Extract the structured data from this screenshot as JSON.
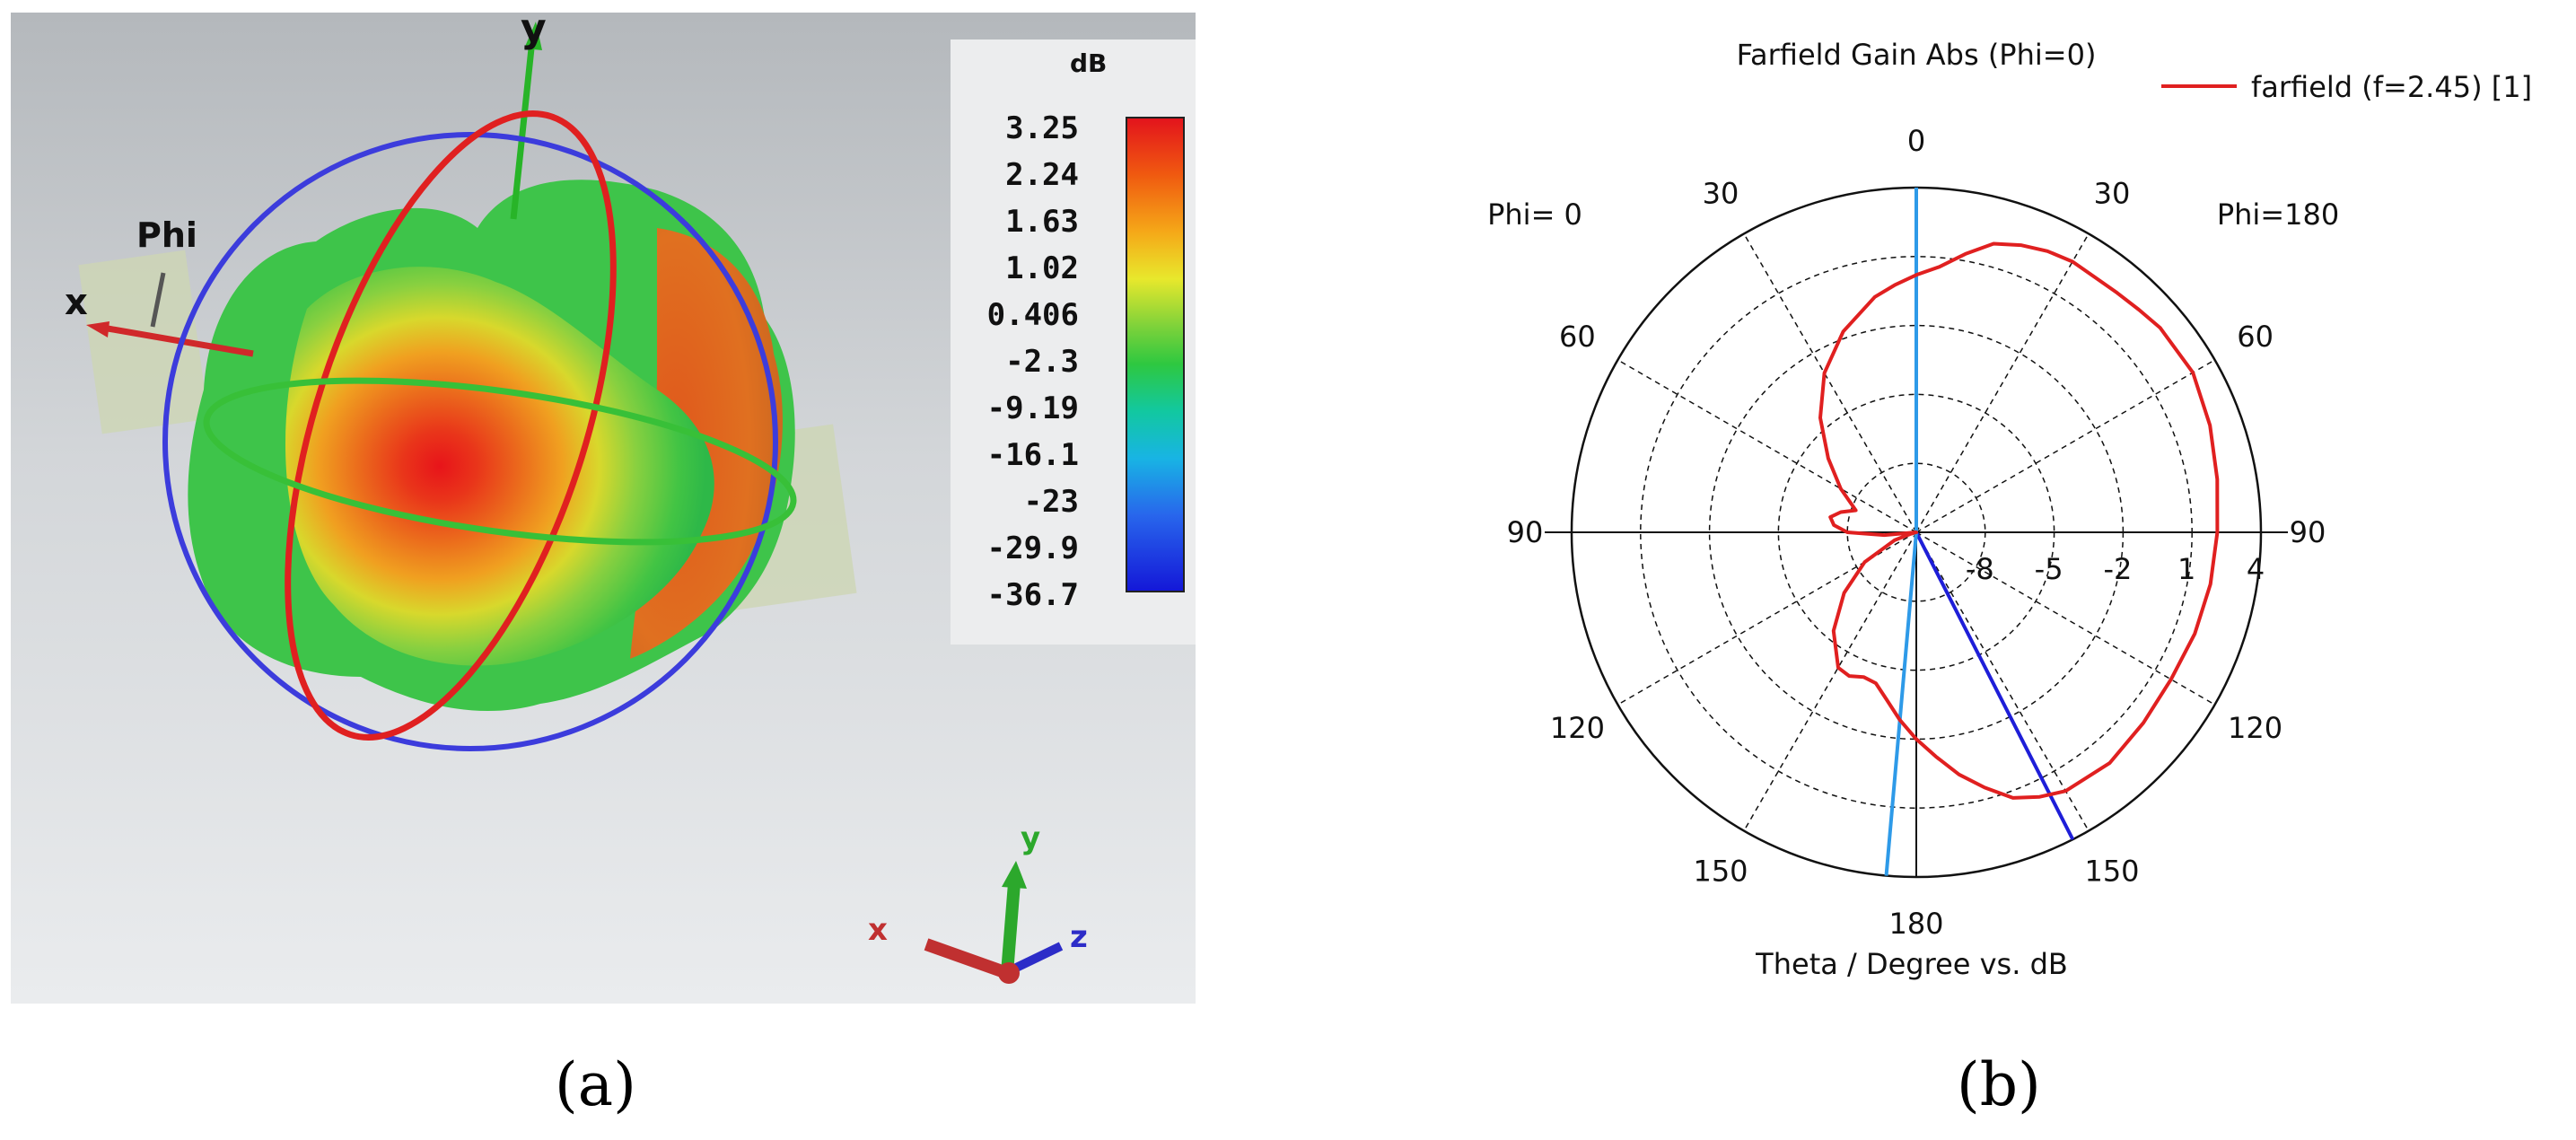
{
  "panel_a": {
    "caption": "(a)",
    "axis_labels": {
      "y": "y",
      "x": "x",
      "phi": "Phi"
    },
    "triad_labels": {
      "x": "x",
      "y": "y",
      "z": "z"
    },
    "colorbar": {
      "unit": "dB",
      "ticks": [
        "3.25",
        "2.24",
        "1.63",
        "1.02",
        "0.406",
        "-2.3",
        "-9.19",
        "-16.1",
        "-23",
        "-29.9",
        "-36.7"
      ],
      "colors": {
        "max": "#e3141c",
        "mid": "#2ec840",
        "min": "#1418d8"
      }
    }
  },
  "panel_b": {
    "caption": "(b)",
    "chart_data": {
      "type": "polar",
      "title": "Farfield Gain Abs (Phi=0)",
      "xlabel": "Theta / Degree vs. dB",
      "left_label": "Phi= 0",
      "right_label": "Phi=180",
      "angle_ticks": [
        "0",
        "30",
        "60",
        "90",
        "120",
        "150",
        "180",
        "150",
        "120",
        "90",
        "60",
        "30"
      ],
      "radial_ticks": [
        "-8",
        "-5",
        "-2",
        "1",
        "4"
      ],
      "radial_range": [
        -11,
        4
      ],
      "legend": {
        "entries": [
          "farfield (f=2.45) [1]"
        ],
        "placement": "top-right"
      },
      "grid": true,
      "series": [
        {
          "name": "farfield (f=2.45) [1]",
          "color": "#e02020",
          "angle_deg": [
            0,
            5,
            10,
            15,
            20,
            25,
            30,
            35,
            40,
            45,
            50,
            60,
            70,
            80,
            90,
            100,
            110,
            120,
            130,
            140,
            150,
            155,
            160,
            165,
            170,
            175,
            180,
            185,
            190,
            195,
            200,
            205,
            210,
            220,
            230,
            240,
            250,
            255,
            260,
            265,
            270,
            275,
            280,
            285,
            290,
            300,
            310,
            320,
            330,
            340,
            350,
            355
          ],
          "gain_db": [
            0.2,
            0.6,
            1.3,
            2.0,
            2.3,
            2.5,
            2.6,
            2.55,
            2.6,
            2.7,
            2.85,
            2.9,
            2.6,
            2.3,
            2.1,
            2.0,
            1.9,
            1.8,
            1.9,
            2.1,
            2.0,
            1.7,
            1.3,
            0.5,
            -0.3,
            -1.2,
            -2.0,
            -2.8,
            -3.6,
            -4.2,
            -4.3,
            -4.1,
            -4.2,
            -5.4,
            -6.9,
            -8.4,
            -10.0,
            -10.8,
            -11.0,
            -9.6,
            -8.0,
            -7.4,
            -7.2,
            -7.6,
            -8.2,
            -7.2,
            -6.0,
            -4.5,
            -3.0,
            -1.7,
            -0.6,
            -0.2
          ]
        }
      ],
      "markers": [
        {
          "name": "main-lobe-direction",
          "color": "#1e1ed8",
          "angle_deg": 153
        },
        {
          "name": "reference-direction",
          "color": "#2e9ae8",
          "angle_deg": 185
        }
      ]
    }
  }
}
